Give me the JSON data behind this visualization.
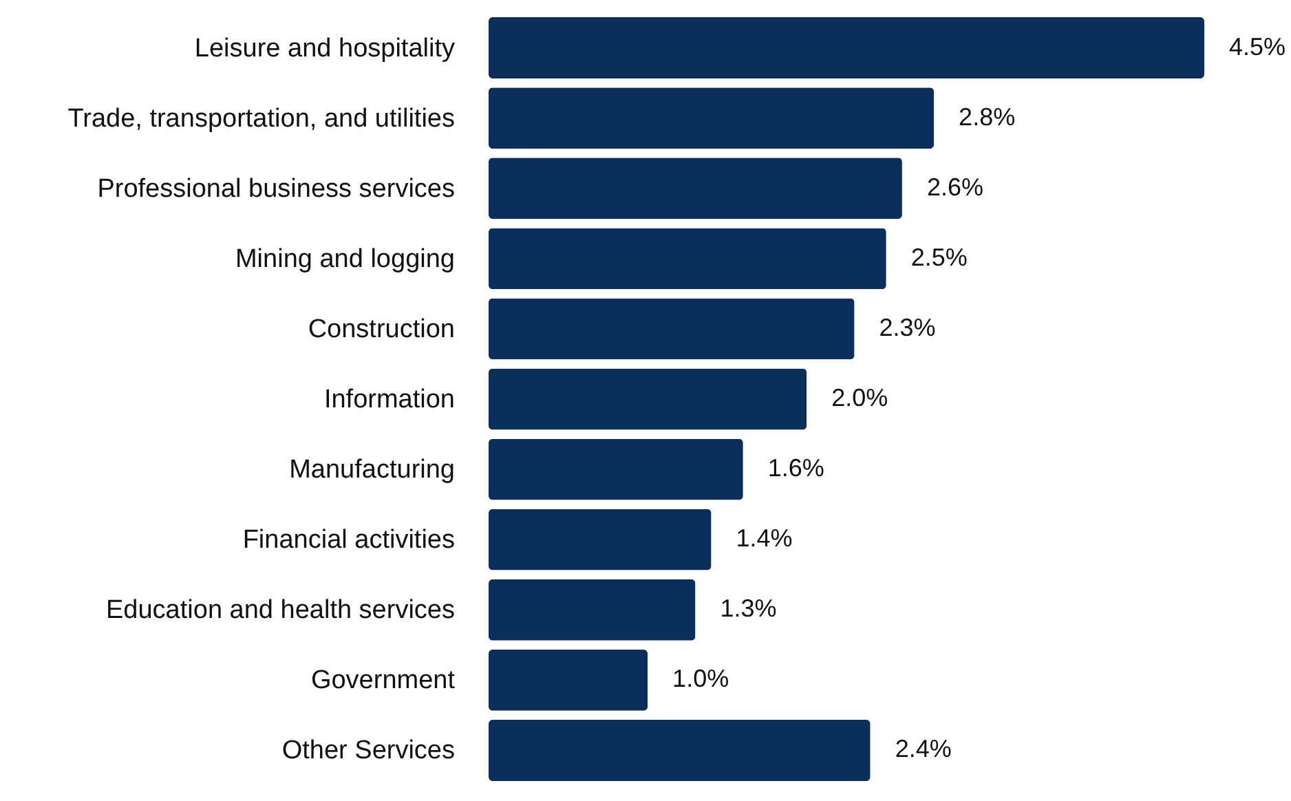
{
  "chart_data": {
    "type": "bar",
    "orientation": "horizontal",
    "categories": [
      "Leisure and hospitality",
      "Trade, transportation, and utilities",
      "Professional business services",
      "Mining and logging",
      "Construction",
      "Information",
      "Manufacturing",
      "Financial activities",
      "Education and health services",
      "Government",
      "Other Services"
    ],
    "values": [
      4.5,
      2.8,
      2.6,
      2.5,
      2.3,
      2.0,
      1.6,
      1.4,
      1.3,
      1.0,
      2.4
    ],
    "value_labels": [
      "4.5%",
      "2.8%",
      "2.6%",
      "2.5%",
      "2.3%",
      "2.0%",
      "1.6%",
      "1.4%",
      "1.3%",
      "1.0%",
      "2.4%"
    ],
    "color": "#0a2f5c",
    "tick_labels": "y"
  }
}
